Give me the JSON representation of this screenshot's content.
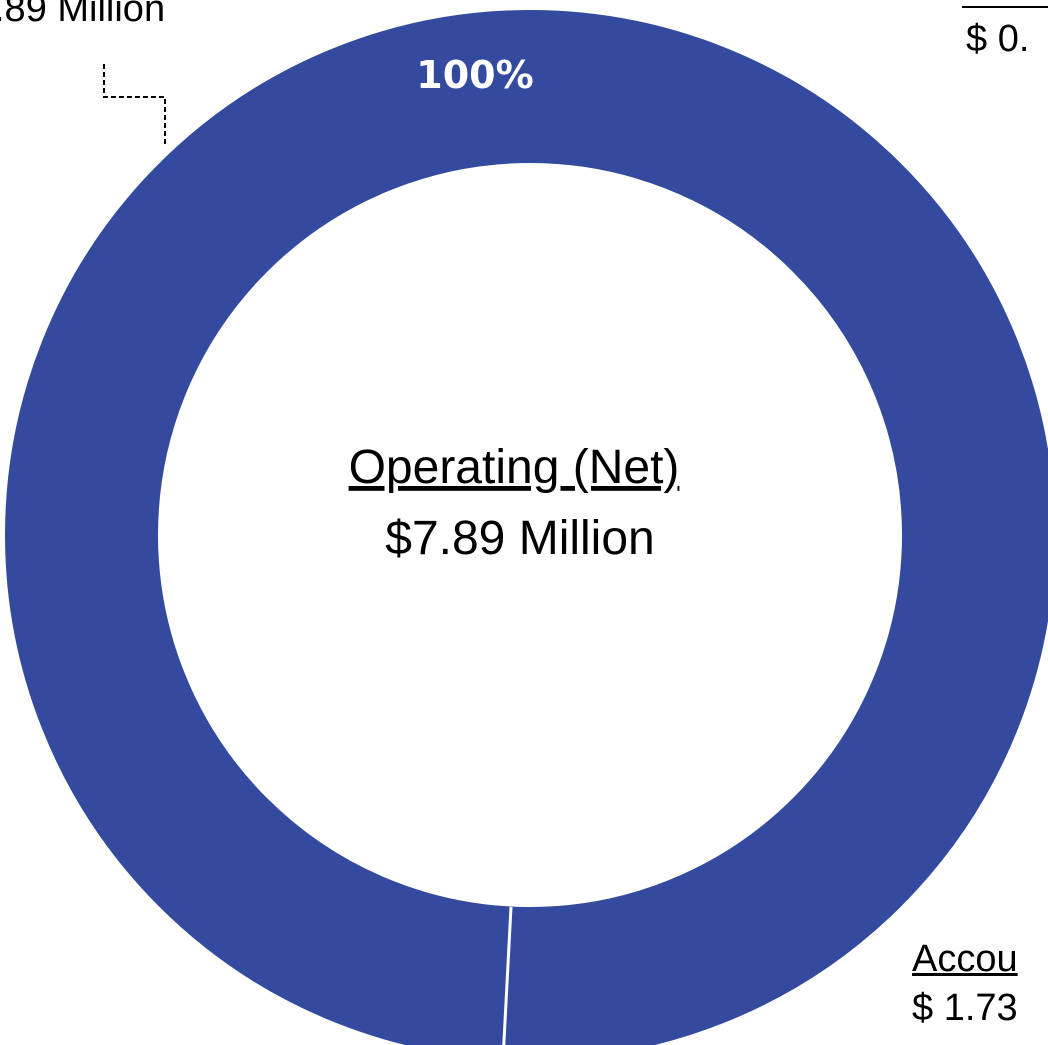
{
  "chart_data": {
    "type": "pie",
    "subtype": "donut",
    "center_label": {
      "title": "Operating (Net)",
      "value": "$7.89 Million"
    },
    "slices": [
      {
        "value": 100,
        "percent_label": "100%",
        "color": "#334A9E"
      },
      {
        "value": 0,
        "color": "#334A9E"
      }
    ],
    "callouts": {
      "top_left_value": ".89 Million",
      "top_right_value": "$ 0.",
      "bottom_right_title": "Accou",
      "bottom_right_value": "$ 1.73"
    },
    "colors": {
      "ring": "#334A9E",
      "separator": "#FFFFFF",
      "percent_text": "#FFFFFF",
      "background": "#FFFFFF"
    }
  }
}
